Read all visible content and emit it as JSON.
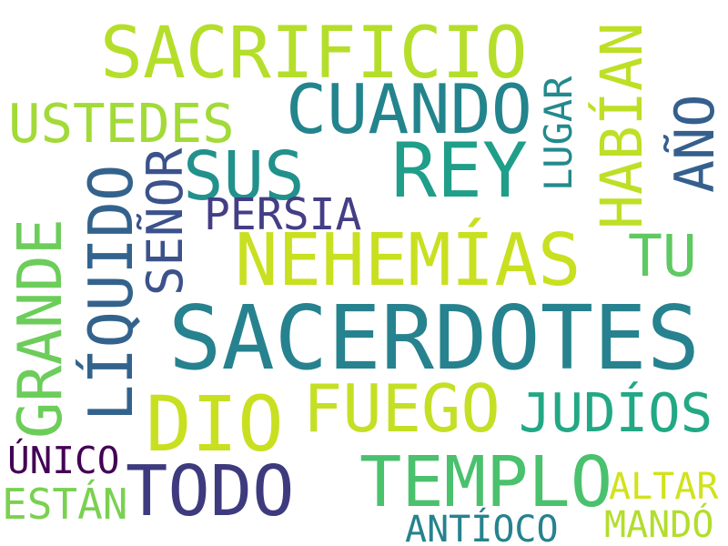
{
  "word_cloud": {
    "words": {
      "sacerdotes": {
        "text": "SACERDOTES",
        "color": "#26828e"
      },
      "sacrificio": {
        "text": "SACRIFICIO",
        "color": "#b5de2b"
      },
      "nehemias": {
        "text": "NEHEMÍAS",
        "color": "#c8e020"
      },
      "rey": {
        "text": "REY",
        "color": "#1f9e89"
      },
      "cuando": {
        "text": "CUANDO",
        "color": "#23848d"
      },
      "templo": {
        "text": "TEMPLO",
        "color": "#4ac16d"
      },
      "dio": {
        "text": "DIO",
        "color": "#c8e020"
      },
      "todo": {
        "text": "TODO",
        "color": "#3e3a7e"
      },
      "fuego": {
        "text": "FUEGO",
        "color": "#c5df25"
      },
      "sus": {
        "text": "SUS",
        "color": "#22918c"
      },
      "ustedes": {
        "text": "USTEDES",
        "color": "#a2da37"
      },
      "judios": {
        "text": "JUDÍOS",
        "color": "#22a884"
      },
      "persia": {
        "text": "PERSIA",
        "color": "#433e85"
      },
      "tu": {
        "text": "TU",
        "color": "#5ec962"
      },
      "estan": {
        "text": "ESTÁN",
        "color": "#7ad151"
      },
      "unico": {
        "text": "ÚNICO",
        "color": "#440154"
      },
      "altar": {
        "text": "ALTAR",
        "color": "#d2e21b"
      },
      "antioco": {
        "text": "ANTÍOCO",
        "color": "#26828e"
      },
      "mando": {
        "text": "MANDÓ",
        "color": "#b2dd2d"
      },
      "liquido": {
        "text": "LÍQUIDO",
        "color": "#33638d"
      },
      "grande": {
        "text": "GRANDE",
        "color": "#6ccd5a"
      },
      "senor": {
        "text": "SEÑOR",
        "color": "#3b528b"
      },
      "habian": {
        "text": "HABÍAN",
        "color": "#bddf26"
      },
      "ano": {
        "text": "AÑO",
        "color": "#355f8d"
      },
      "lugar": {
        "text": "LUGAR",
        "color": "#238a8d"
      }
    }
  }
}
